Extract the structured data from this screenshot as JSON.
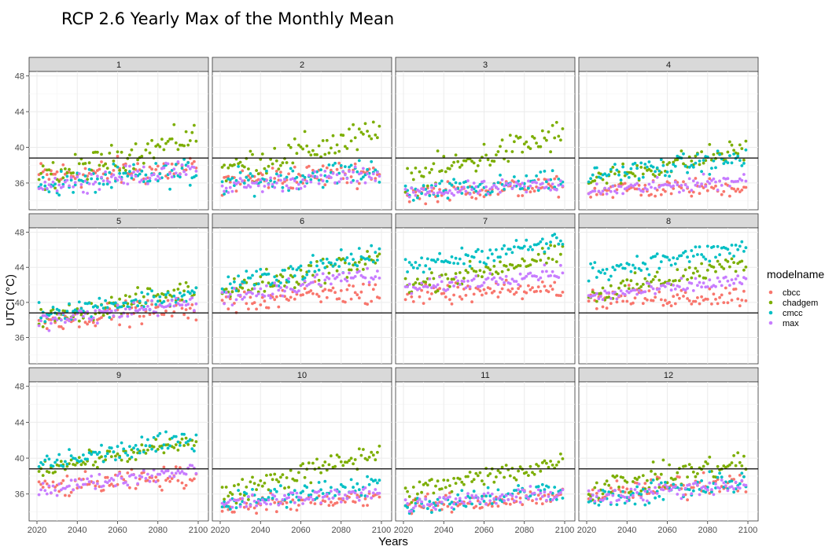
{
  "chart_data": {
    "type": "scatter",
    "title": "RCP 2.6 Yearly Max of the Monthly Mean",
    "xlabel": "Years",
    "ylabel": "UTCI (°C)",
    "xlim": [
      2020,
      2100
    ],
    "ylim": [
      33,
      48.5
    ],
    "x_ticks": [
      2020,
      2040,
      2060,
      2080,
      2100
    ],
    "x_tick_labels": [
      "2020",
      "2040",
      "2060",
      "2080",
      "2100"
    ],
    "y_ticks": [
      36,
      40,
      44,
      48
    ],
    "y_tick_labels": [
      "36",
      "40",
      "44",
      "48"
    ],
    "reference_line": 38.8,
    "grid": true,
    "legend": {
      "title": "modelname",
      "position": "right"
    },
    "series": [
      {
        "name": "cbcc",
        "color": "#F8766D"
      },
      {
        "name": "chadgem",
        "color": "#7CAE00"
      },
      {
        "name": "cmcc",
        "color": "#00BFC4"
      },
      {
        "name": "max",
        "color": "#C77CFF"
      }
    ],
    "panels": [
      {
        "label": "1",
        "series_levels": {
          "cbcc": {
            "start": 36.8,
            "end": 37.6,
            "spread": 1.4
          },
          "chadgem": {
            "start": 36.5,
            "end": 41.2,
            "spread": 1.3
          },
          "cmcc": {
            "start": 35.8,
            "end": 37.2,
            "spread": 1.2
          },
          "max": {
            "start": 35.8,
            "end": 37.5,
            "spread": 0.9
          }
        }
      },
      {
        "label": "2",
        "series_levels": {
          "cbcc": {
            "start": 36.2,
            "end": 37.3,
            "spread": 1.2
          },
          "chadgem": {
            "start": 37.5,
            "end": 41.5,
            "spread": 1.6
          },
          "cmcc": {
            "start": 36.0,
            "end": 37.5,
            "spread": 1.2
          },
          "max": {
            "start": 35.5,
            "end": 37.0,
            "spread": 0.8
          }
        }
      },
      {
        "label": "3",
        "series_levels": {
          "cbcc": {
            "start": 34.8,
            "end": 35.7,
            "spread": 0.9
          },
          "chadgem": {
            "start": 36.3,
            "end": 41.5,
            "spread": 1.5
          },
          "cmcc": {
            "start": 34.8,
            "end": 36.2,
            "spread": 1.0
          },
          "max": {
            "start": 34.8,
            "end": 35.9,
            "spread": 0.7
          }
        }
      },
      {
        "label": "4",
        "series_levels": {
          "cbcc": {
            "start": 35.2,
            "end": 35.6,
            "spread": 0.9
          },
          "chadgem": {
            "start": 36.2,
            "end": 39.8,
            "spread": 1.1
          },
          "cmcc": {
            "start": 36.8,
            "end": 38.8,
            "spread": 1.0
          },
          "max": {
            "start": 35.0,
            "end": 36.4,
            "spread": 0.7
          }
        }
      },
      {
        "label": "5",
        "series_levels": {
          "cbcc": {
            "start": 38.0,
            "end": 39.4,
            "spread": 1.1
          },
          "chadgem": {
            "start": 38.0,
            "end": 41.6,
            "spread": 1.0
          },
          "cmcc": {
            "start": 38.8,
            "end": 40.9,
            "spread": 1.0
          },
          "max": {
            "start": 37.8,
            "end": 40.0,
            "spread": 0.8
          }
        }
      },
      {
        "label": "6",
        "series_levels": {
          "cbcc": {
            "start": 40.2,
            "end": 41.2,
            "spread": 1.3
          },
          "chadgem": {
            "start": 41.2,
            "end": 45.0,
            "spread": 1.2
          },
          "cmcc": {
            "start": 41.8,
            "end": 45.5,
            "spread": 1.1
          },
          "max": {
            "start": 40.6,
            "end": 43.5,
            "spread": 0.9
          }
        }
      },
      {
        "label": "7",
        "series_levels": {
          "cbcc": {
            "start": 40.7,
            "end": 41.6,
            "spread": 0.9
          },
          "chadgem": {
            "start": 41.8,
            "end": 45.5,
            "spread": 1.0
          },
          "cmcc": {
            "start": 44.0,
            "end": 47.0,
            "spread": 0.9
          },
          "max": {
            "start": 41.5,
            "end": 43.6,
            "spread": 0.7
          }
        }
      },
      {
        "label": "8",
        "series_levels": {
          "cbcc": {
            "start": 40.4,
            "end": 40.8,
            "spread": 1.0
          },
          "chadgem": {
            "start": 40.8,
            "end": 44.6,
            "spread": 1.0
          },
          "cmcc": {
            "start": 43.5,
            "end": 46.3,
            "spread": 1.0
          },
          "max": {
            "start": 40.6,
            "end": 42.6,
            "spread": 0.7
          }
        }
      },
      {
        "label": "9",
        "series_levels": {
          "cbcc": {
            "start": 36.6,
            "end": 38.0,
            "spread": 1.0
          },
          "chadgem": {
            "start": 38.8,
            "end": 41.8,
            "spread": 0.8
          },
          "cmcc": {
            "start": 39.3,
            "end": 42.2,
            "spread": 1.0
          },
          "max": {
            "start": 36.5,
            "end": 38.8,
            "spread": 0.7
          }
        }
      },
      {
        "label": "10",
        "series_levels": {
          "cbcc": {
            "start": 34.7,
            "end": 35.6,
            "spread": 0.8
          },
          "chadgem": {
            "start": 36.0,
            "end": 40.6,
            "spread": 1.1
          },
          "cmcc": {
            "start": 35.0,
            "end": 37.2,
            "spread": 1.0
          },
          "max": {
            "start": 34.8,
            "end": 36.3,
            "spread": 0.7
          }
        }
      },
      {
        "label": "11",
        "series_levels": {
          "cbcc": {
            "start": 34.6,
            "end": 35.7,
            "spread": 0.9
          },
          "chadgem": {
            "start": 36.2,
            "end": 39.6,
            "spread": 1.0
          },
          "cmcc": {
            "start": 34.8,
            "end": 36.6,
            "spread": 1.0
          },
          "max": {
            "start": 34.8,
            "end": 36.1,
            "spread": 0.7
          }
        }
      },
      {
        "label": "12",
        "series_levels": {
          "cbcc": {
            "start": 35.8,
            "end": 37.6,
            "spread": 1.2
          },
          "chadgem": {
            "start": 36.5,
            "end": 39.6,
            "spread": 1.2
          },
          "cmcc": {
            "start": 35.2,
            "end": 37.6,
            "spread": 1.2
          },
          "max": {
            "start": 35.6,
            "end": 37.2,
            "spread": 0.8
          }
        }
      }
    ]
  }
}
